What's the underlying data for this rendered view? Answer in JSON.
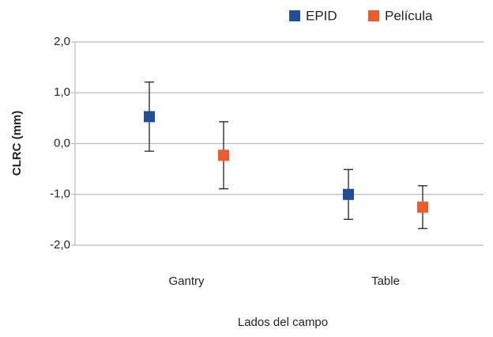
{
  "chart_data": {
    "type": "errorpoint",
    "categories": [
      "Gantry",
      "Table"
    ],
    "series": [
      {
        "name": "EPID",
        "color": "#1f4e9a",
        "values": [
          0.53,
          -1.0
        ],
        "errors": [
          0.68,
          0.49
        ]
      },
      {
        "name": "Película",
        "color": "#f0592a",
        "values": [
          -0.23,
          -1.25
        ],
        "errors": [
          0.66,
          0.42
        ]
      }
    ],
    "ylabel": "CLRC (mm)",
    "xlabel": "Lados del campo",
    "ylim": [
      -2,
      2
    ],
    "yticks": [
      {
        "value": 2,
        "label": "2,0"
      },
      {
        "value": 1,
        "label": "1,0"
      },
      {
        "value": 0,
        "label": "0,0"
      },
      {
        "value": -1,
        "label": "-1,0"
      },
      {
        "value": -2,
        "label": "-2,0"
      }
    ],
    "grid": true,
    "legend": "top"
  }
}
